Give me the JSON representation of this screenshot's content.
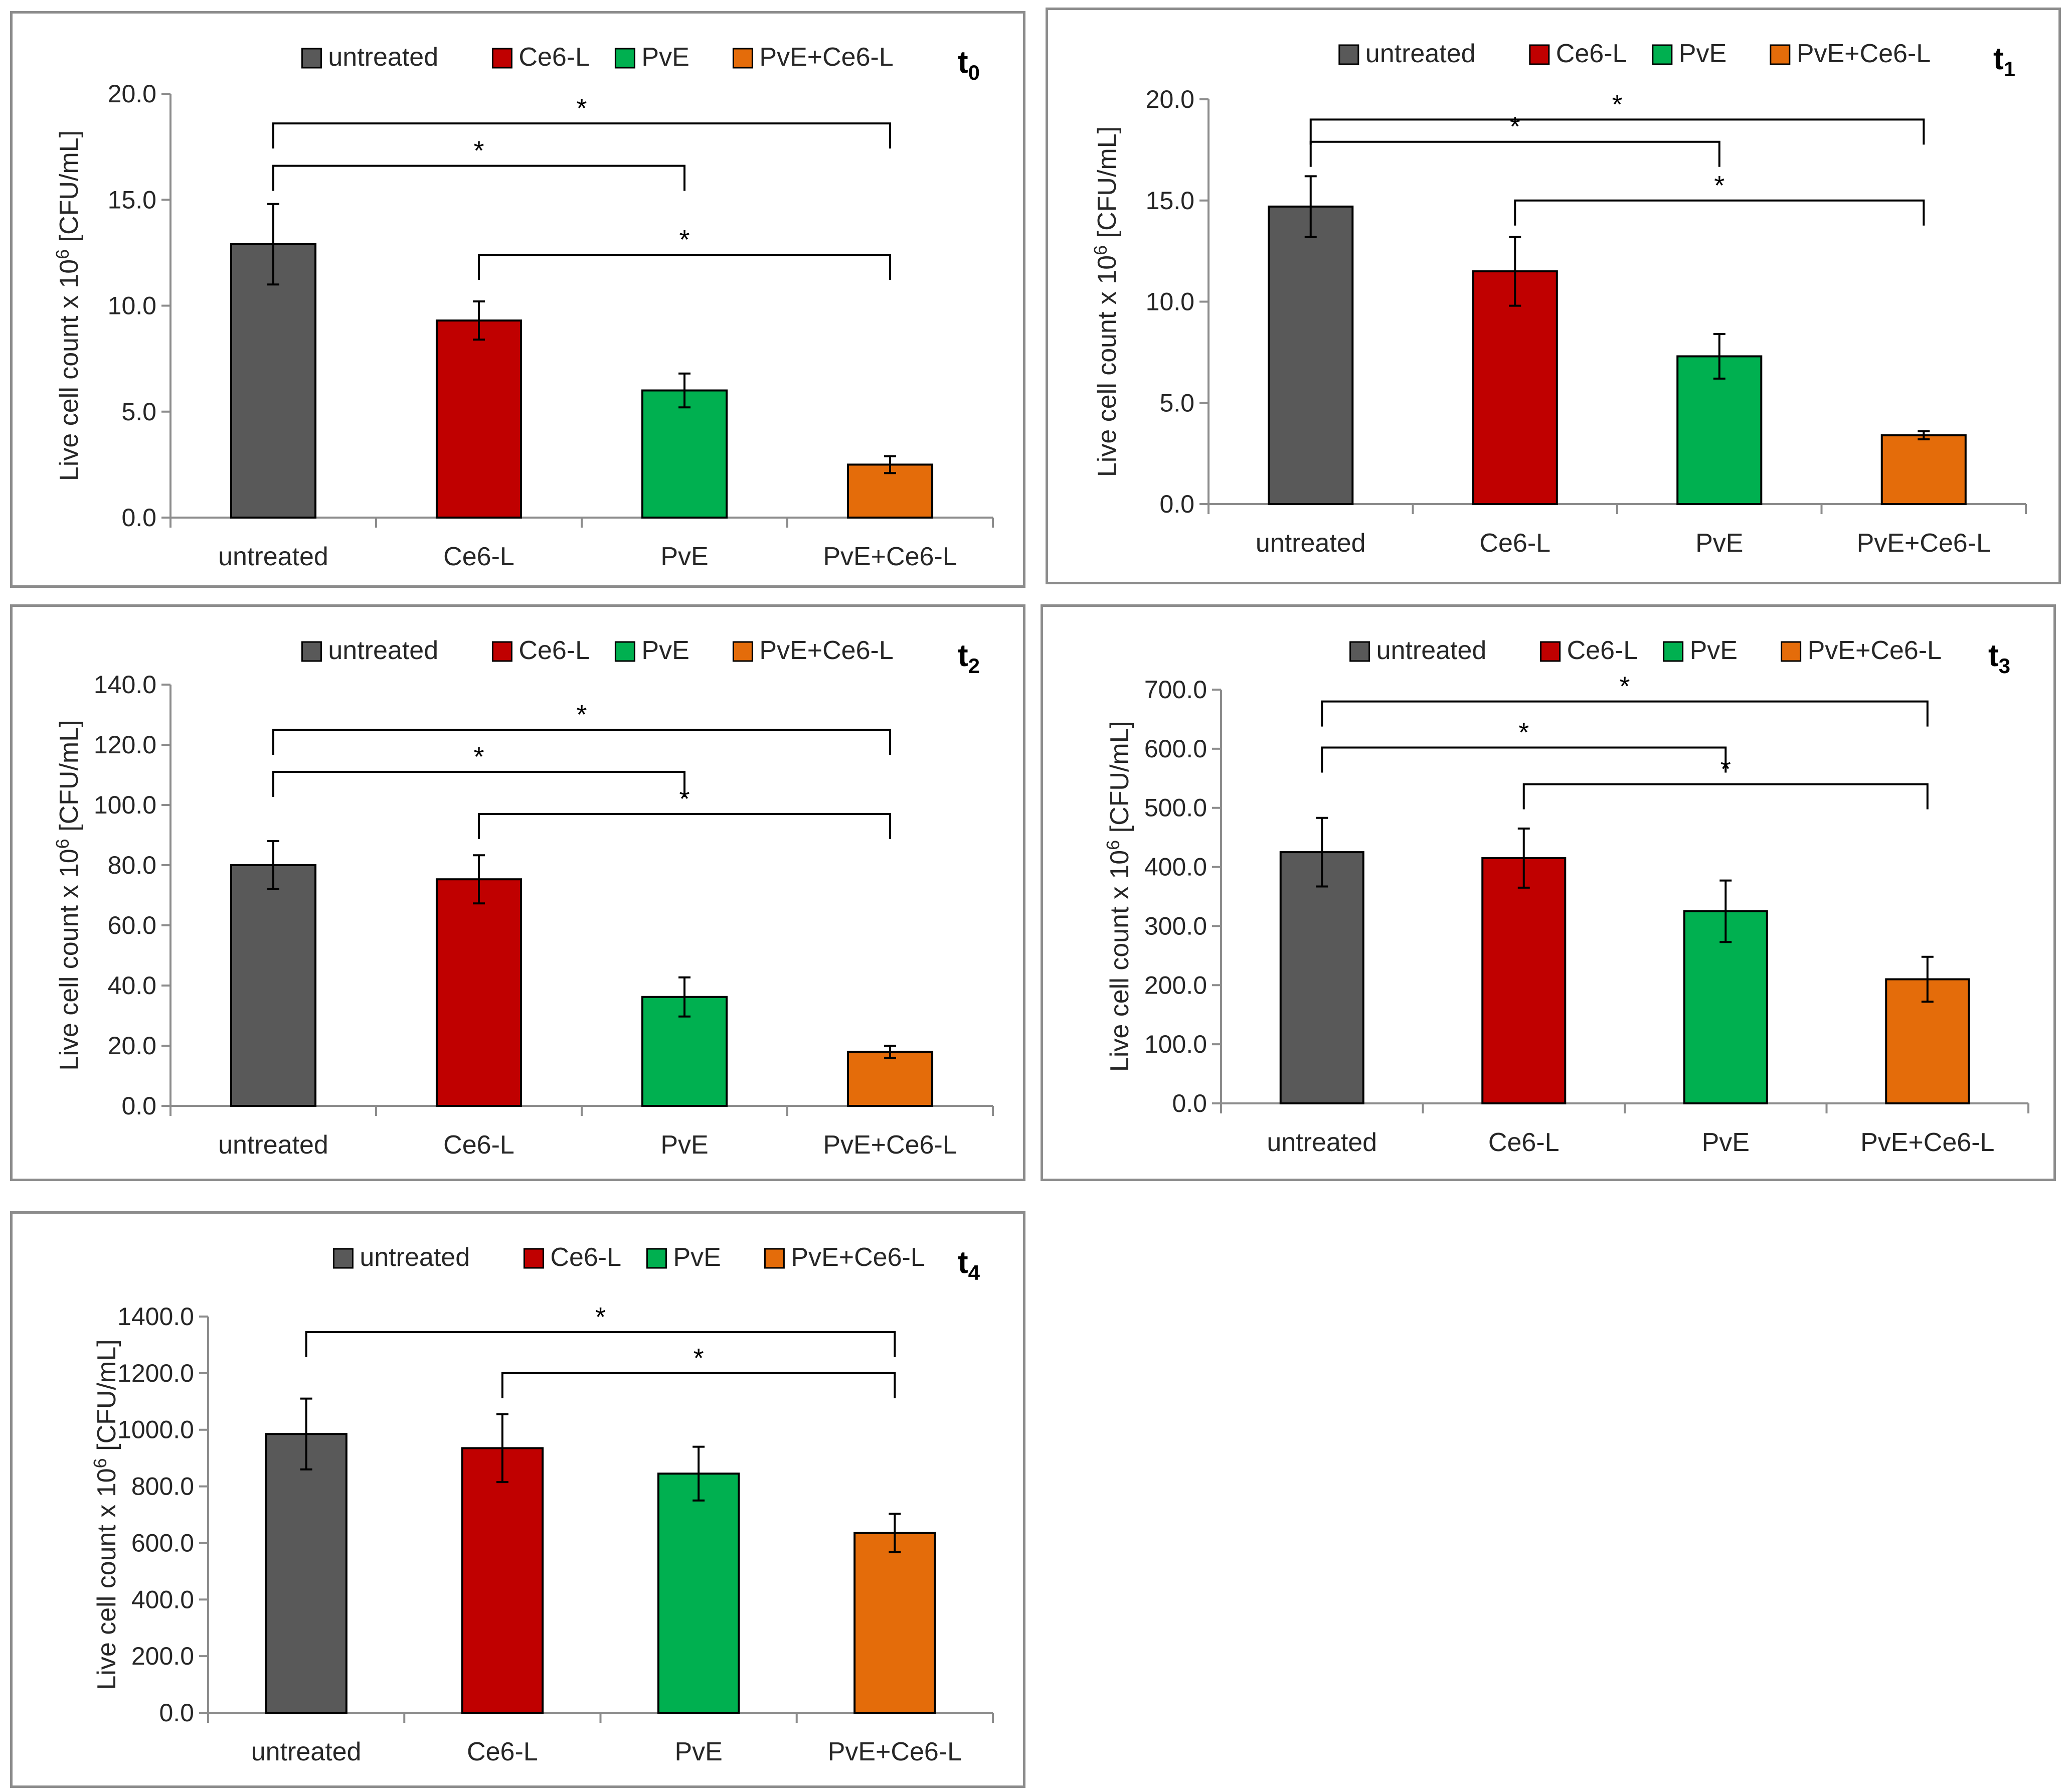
{
  "colors": {
    "untreated": "#595959",
    "Ce6-L": "#c00000",
    "PvE": "#00b050",
    "PvE+Ce6-L": "#e46c0a"
  },
  "chart_data": [
    {
      "type": "bar",
      "panel_label": "t",
      "panel_label_sub": "0",
      "categories": [
        "untreated",
        "Ce6-L",
        "PvE",
        "PvE+Ce6-L"
      ],
      "values": [
        12.9,
        9.3,
        6.0,
        2.5
      ],
      "errors": [
        1.9,
        0.9,
        0.8,
        0.4
      ],
      "ylabel_main": "Live cell count x 10",
      "ylabel_sup": "6",
      "ylabel_tail": " [CFU/mL]",
      "ylim": [
        0,
        20
      ],
      "yticks": [
        "0.0",
        "5.0",
        "10.0",
        "15.0",
        "20.0"
      ],
      "legend": [
        "untreated",
        "Ce6-L",
        "PvE",
        "PvE+Ce6-L"
      ],
      "legend_position": "top",
      "significance": [
        {
          "from": 0,
          "to": 3,
          "y": 18.6,
          "label": "*"
        },
        {
          "from": 0,
          "to": 2,
          "y": 16.6,
          "label": "*"
        },
        {
          "from": 1,
          "to": 3,
          "y": 12.4,
          "label": "*"
        }
      ]
    },
    {
      "type": "bar",
      "panel_label": "t",
      "panel_label_sub": "1",
      "categories": [
        "untreated",
        "Ce6-L",
        "PvE",
        "PvE+Ce6-L"
      ],
      "values": [
        14.7,
        11.5,
        7.3,
        3.4
      ],
      "errors": [
        1.5,
        1.7,
        1.1,
        0.2
      ],
      "ylabel_main": "Live cell count x 10",
      "ylabel_sup": "6",
      "ylabel_tail": " [CFU/mL]",
      "ylim": [
        0,
        20
      ],
      "yticks": [
        "0.0",
        "5.0",
        "10.0",
        "15.0",
        "20.0"
      ],
      "legend": [
        "untreated",
        "Ce6-L",
        "PvE",
        "PvE+Ce6-L"
      ],
      "legend_position": "top",
      "significance": [
        {
          "from": 0,
          "to": 3,
          "y": 19.0,
          "label": "*"
        },
        {
          "from": 0,
          "to": 2,
          "y": 17.9,
          "label": "*"
        },
        {
          "from": 1,
          "to": 3,
          "y": 15.0,
          "label": "*"
        }
      ]
    },
    {
      "type": "bar",
      "panel_label": "t",
      "panel_label_sub": "2",
      "categories": [
        "untreated",
        "Ce6-L",
        "PvE",
        "PvE+Ce6-L"
      ],
      "values": [
        80.0,
        75.3,
        36.2,
        18.0
      ],
      "errors": [
        8.0,
        8.0,
        6.5,
        2.0
      ],
      "ylabel_main": "Live cell count x 10",
      "ylabel_sup": "6",
      "ylabel_tail": " [CFU/mL]",
      "ylim": [
        0,
        140
      ],
      "yticks": [
        "0.0",
        "20.0",
        "40.0",
        "60.0",
        "80.0",
        "100.0",
        "120.0",
        "140.0"
      ],
      "legend": [
        "untreated",
        "Ce6-L",
        "PvE",
        "PvE+Ce6-L"
      ],
      "legend_position": "top",
      "significance": [
        {
          "from": 0,
          "to": 3,
          "y": 125,
          "label": "*"
        },
        {
          "from": 0,
          "to": 2,
          "y": 111,
          "label": "*"
        },
        {
          "from": 1,
          "to": 3,
          "y": 97,
          "label": "*"
        }
      ]
    },
    {
      "type": "bar",
      "panel_label": "t",
      "panel_label_sub": "3",
      "categories": [
        "untreated",
        "Ce6-L",
        "PvE",
        "PvE+Ce6-L"
      ],
      "values": [
        425,
        415,
        325,
        210
      ],
      "errors": [
        58,
        50,
        52,
        38
      ],
      "ylabel_main": "Live cell count x 10",
      "ylabel_sup": "6",
      "ylabel_tail": " [CFU/mL]",
      "ylim": [
        0,
        700
      ],
      "yticks": [
        "0.0",
        "100.0",
        "200.0",
        "300.0",
        "400.0",
        "500.0",
        "600.0",
        "700.0"
      ],
      "legend": [
        "untreated",
        "Ce6-L",
        "PvE",
        "PvE+Ce6-L"
      ],
      "legend_position": "top",
      "significance": [
        {
          "from": 0,
          "to": 3,
          "y": 680,
          "label": "*"
        },
        {
          "from": 0,
          "to": 2,
          "y": 602,
          "label": "*"
        },
        {
          "from": 1,
          "to": 3,
          "y": 540,
          "label": "*"
        }
      ]
    },
    {
      "type": "bar",
      "panel_label": "t",
      "panel_label_sub": "4",
      "categories": [
        "untreated",
        "Ce6-L",
        "PvE",
        "PvE+Ce6-L"
      ],
      "values": [
        985,
        935,
        845,
        635
      ],
      "errors": [
        125,
        120,
        95,
        68
      ],
      "ylabel_main": "Live cell count x 10",
      "ylabel_sup": "6",
      "ylabel_tail": " [CFU/mL]",
      "ylim": [
        0,
        1400
      ],
      "yticks": [
        "0.0",
        "200.0",
        "400.0",
        "600.0",
        "800.0",
        "1000.0",
        "1200.0",
        "1400.0"
      ],
      "legend": [
        "untreated",
        "Ce6-L",
        "PvE",
        "PvE+Ce6-L"
      ],
      "legend_position": "top",
      "significance": [
        {
          "from": 0,
          "to": 3,
          "y": 1345,
          "label": "*"
        },
        {
          "from": 1,
          "to": 3,
          "y": 1200,
          "label": "*"
        }
      ]
    }
  ]
}
